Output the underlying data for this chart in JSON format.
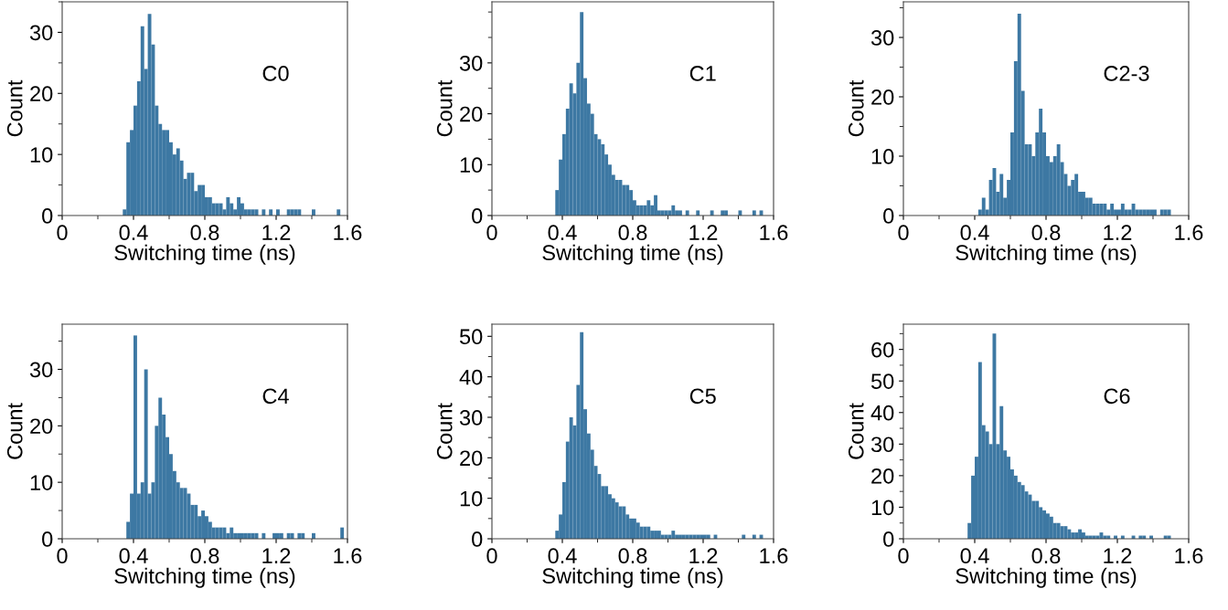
{
  "chart_data": [
    {
      "type": "histogram",
      "color": "#3d78a3",
      "xlabel": "Switching time (ns)",
      "ylabel": "Count",
      "annotations": [
        "C0"
      ],
      "xlim": [
        0,
        1.6
      ],
      "xticks": [
        0,
        0.4,
        0.8,
        1.2,
        1.6
      ],
      "ylim": [
        0,
        35
      ],
      "yticks": [
        0,
        10,
        20,
        30
      ],
      "grid": false,
      "bins": [
        0.34,
        0.36,
        0.38,
        0.4,
        0.42,
        0.44,
        0.46,
        0.48,
        0.5,
        0.52,
        0.54,
        0.56,
        0.58,
        0.6,
        0.62,
        0.64,
        0.66,
        0.68,
        0.7,
        0.72,
        0.74,
        0.76,
        0.78,
        0.8,
        0.82,
        0.84,
        0.86,
        0.88,
        0.9,
        0.92,
        0.94,
        0.96,
        0.98,
        1.0,
        1.02,
        1.04,
        1.06,
        1.08,
        1.1,
        1.12,
        1.14,
        1.16,
        1.18,
        1.2,
        1.22,
        1.24,
        1.26,
        1.28,
        1.3,
        1.32,
        1.34,
        1.36,
        1.38,
        1.4,
        1.42,
        1.44,
        1.46,
        1.48,
        1.5,
        1.52,
        1.54,
        1.56,
        1.58
      ],
      "values": [
        1,
        12,
        14,
        18,
        22,
        31,
        24,
        33,
        28,
        18,
        15,
        14,
        14,
        12,
        10,
        11,
        9,
        6,
        7,
        7,
        4,
        5,
        5,
        3,
        3,
        2,
        2,
        2,
        1,
        3,
        2,
        1,
        3,
        2,
        1,
        1,
        1,
        1,
        0,
        1,
        0,
        1,
        0,
        1,
        0,
        0,
        1,
        1,
        1,
        1,
        0,
        0,
        0,
        1,
        0,
        0,
        0,
        0,
        0,
        0,
        1,
        0
      ]
    },
    {
      "type": "histogram",
      "color": "#3d78a3",
      "xlabel": "Switching time (ns)",
      "ylabel": "Count",
      "annotations": [
        "C1"
      ],
      "xlim": [
        0,
        1.6
      ],
      "xticks": [
        0,
        0.4,
        0.8,
        1.2,
        1.6
      ],
      "ylim": [
        0,
        42
      ],
      "yticks": [
        0,
        10,
        20,
        30
      ],
      "grid": false,
      "bins": [
        0.34,
        0.36,
        0.38,
        0.4,
        0.42,
        0.44,
        0.46,
        0.48,
        0.5,
        0.52,
        0.54,
        0.56,
        0.58,
        0.6,
        0.62,
        0.64,
        0.66,
        0.68,
        0.7,
        0.72,
        0.74,
        0.76,
        0.78,
        0.8,
        0.82,
        0.84,
        0.86,
        0.88,
        0.9,
        0.92,
        0.94,
        0.96,
        0.98,
        1.0,
        1.02,
        1.04,
        1.06,
        1.08,
        1.1,
        1.12,
        1.14,
        1.16,
        1.18,
        1.2,
        1.22,
        1.24,
        1.26,
        1.28,
        1.3,
        1.32,
        1.34,
        1.36,
        1.38,
        1.4,
        1.42,
        1.44,
        1.46,
        1.48,
        1.5,
        1.52,
        1.54,
        1.56,
        1.58
      ],
      "values": [
        0,
        5,
        11,
        16,
        21,
        26,
        24,
        30,
        40,
        27,
        22,
        20,
        16,
        15,
        14,
        12,
        10,
        8,
        7,
        7,
        6,
        6,
        5,
        3,
        2,
        2,
        2,
        3,
        2,
        4,
        1,
        1,
        1,
        1,
        2,
        1,
        1,
        0,
        1,
        0,
        0,
        1,
        0,
        0,
        0,
        1,
        0,
        0,
        1,
        1,
        0,
        0,
        0,
        1,
        0,
        0,
        0,
        1,
        0,
        1,
        0,
        0
      ]
    },
    {
      "type": "histogram",
      "color": "#3d78a3",
      "xlabel": "Switching time (ns)",
      "ylabel": "Count",
      "annotations": [
        "C2-3"
      ],
      "xlim": [
        0,
        1.6
      ],
      "xticks": [
        0,
        0.4,
        0.8,
        1.2,
        1.6
      ],
      "ylim": [
        0,
        36
      ],
      "yticks": [
        0,
        10,
        20,
        30
      ],
      "grid": false,
      "bins": [
        0.34,
        0.36,
        0.38,
        0.4,
        0.42,
        0.44,
        0.46,
        0.48,
        0.5,
        0.52,
        0.54,
        0.56,
        0.58,
        0.6,
        0.62,
        0.64,
        0.66,
        0.68,
        0.7,
        0.72,
        0.74,
        0.76,
        0.78,
        0.8,
        0.82,
        0.84,
        0.86,
        0.88,
        0.9,
        0.92,
        0.94,
        0.96,
        0.98,
        1.0,
        1.02,
        1.04,
        1.06,
        1.08,
        1.1,
        1.12,
        1.14,
        1.16,
        1.18,
        1.2,
        1.22,
        1.24,
        1.26,
        1.28,
        1.3,
        1.32,
        1.34,
        1.36,
        1.38,
        1.4,
        1.42,
        1.44,
        1.46,
        1.48,
        1.5,
        1.52,
        1.54,
        1.56,
        1.58
      ],
      "values": [
        0,
        0,
        0,
        0,
        1,
        3,
        1,
        6,
        8,
        4,
        7,
        3,
        6,
        14,
        26,
        34,
        21,
        12,
        12,
        10,
        14,
        18,
        14,
        10,
        9,
        10,
        12,
        9,
        7,
        5,
        6,
        7,
        4,
        4,
        3,
        3,
        2,
        2,
        2,
        2,
        1,
        2,
        1,
        1,
        2,
        1,
        1,
        2,
        1,
        1,
        1,
        1,
        1,
        1,
        0,
        1,
        1,
        1,
        0,
        0,
        0,
        0
      ]
    },
    {
      "type": "histogram",
      "color": "#3d78a3",
      "xlabel": "Switching time (ns)",
      "ylabel": "Count",
      "annotations": [
        "C4"
      ],
      "xlim": [
        0,
        1.6
      ],
      "xticks": [
        0,
        0.4,
        0.8,
        1.2,
        1.6
      ],
      "ylim": [
        0,
        38
      ],
      "yticks": [
        0,
        10,
        20,
        30
      ],
      "grid": false,
      "bins": [
        0.34,
        0.36,
        0.38,
        0.4,
        0.42,
        0.44,
        0.46,
        0.48,
        0.5,
        0.52,
        0.54,
        0.56,
        0.58,
        0.6,
        0.62,
        0.64,
        0.66,
        0.68,
        0.7,
        0.72,
        0.74,
        0.76,
        0.78,
        0.8,
        0.82,
        0.84,
        0.86,
        0.88,
        0.9,
        0.92,
        0.94,
        0.96,
        0.98,
        1.0,
        1.02,
        1.04,
        1.06,
        1.08,
        1.1,
        1.12,
        1.14,
        1.16,
        1.18,
        1.2,
        1.22,
        1.24,
        1.26,
        1.28,
        1.3,
        1.32,
        1.34,
        1.36,
        1.38,
        1.4,
        1.42,
        1.44,
        1.46,
        1.48,
        1.5,
        1.52,
        1.54,
        1.56,
        1.58
      ],
      "values": [
        0,
        3,
        8,
        36,
        8,
        10,
        30,
        8,
        10,
        20,
        25,
        22,
        18,
        15,
        12,
        10,
        9,
        9,
        8,
        6,
        6,
        4,
        5,
        4,
        3,
        2,
        2,
        2,
        2,
        1,
        2,
        1,
        1,
        1,
        1,
        1,
        1,
        1,
        0,
        1,
        0,
        0,
        1,
        1,
        1,
        0,
        1,
        1,
        0,
        1,
        1,
        0,
        0,
        1,
        0,
        0,
        0,
        0,
        0,
        0,
        0,
        2
      ]
    },
    {
      "type": "histogram",
      "color": "#3d78a3",
      "xlabel": "Switching time (ns)",
      "ylabel": "Count",
      "annotations": [
        "C5"
      ],
      "xlim": [
        0,
        1.6
      ],
      "xticks": [
        0,
        0.4,
        0.8,
        1.2,
        1.6
      ],
      "ylim": [
        0,
        53
      ],
      "yticks": [
        0,
        10,
        20,
        30,
        40,
        50
      ],
      "grid": false,
      "bins": [
        0.34,
        0.36,
        0.38,
        0.4,
        0.42,
        0.44,
        0.46,
        0.48,
        0.5,
        0.52,
        0.54,
        0.56,
        0.58,
        0.6,
        0.62,
        0.64,
        0.66,
        0.68,
        0.7,
        0.72,
        0.74,
        0.76,
        0.78,
        0.8,
        0.82,
        0.84,
        0.86,
        0.88,
        0.9,
        0.92,
        0.94,
        0.96,
        0.98,
        1.0,
        1.02,
        1.04,
        1.06,
        1.08,
        1.1,
        1.12,
        1.14,
        1.16,
        1.18,
        1.2,
        1.22,
        1.24,
        1.26,
        1.28,
        1.3,
        1.32,
        1.34,
        1.36,
        1.38,
        1.4,
        1.42,
        1.44,
        1.46,
        1.48,
        1.5,
        1.52,
        1.54,
        1.56,
        1.58
      ],
      "values": [
        0,
        2,
        6,
        14,
        24,
        30,
        28,
        38,
        51,
        32,
        26,
        22,
        18,
        16,
        13,
        13,
        11,
        10,
        9,
        8,
        8,
        6,
        5,
        5,
        4,
        3,
        3,
        3,
        2,
        2,
        2,
        1,
        1,
        1,
        2,
        1,
        1,
        1,
        1,
        1,
        1,
        1,
        1,
        1,
        1,
        0,
        1,
        0,
        0,
        0,
        0,
        0,
        0,
        0,
        1,
        0,
        0,
        1,
        0,
        1,
        0,
        0
      ]
    },
    {
      "type": "histogram",
      "color": "#3d78a3",
      "xlabel": "Switching time (ns)",
      "ylabel": "Count",
      "annotations": [
        "C6"
      ],
      "xlim": [
        0,
        1.6
      ],
      "xticks": [
        0,
        0.4,
        0.8,
        1.2,
        1.6
      ],
      "ylim": [
        0,
        68
      ],
      "yticks": [
        0,
        10,
        20,
        30,
        40,
        50,
        60
      ],
      "grid": false,
      "bins": [
        0.34,
        0.36,
        0.38,
        0.4,
        0.42,
        0.44,
        0.46,
        0.48,
        0.5,
        0.52,
        0.54,
        0.56,
        0.58,
        0.6,
        0.62,
        0.64,
        0.66,
        0.68,
        0.7,
        0.72,
        0.74,
        0.76,
        0.78,
        0.8,
        0.82,
        0.84,
        0.86,
        0.88,
        0.9,
        0.92,
        0.94,
        0.96,
        0.98,
        1.0,
        1.02,
        1.04,
        1.06,
        1.08,
        1.1,
        1.12,
        1.14,
        1.16,
        1.18,
        1.2,
        1.22,
        1.24,
        1.26,
        1.28,
        1.3,
        1.32,
        1.34,
        1.36,
        1.38,
        1.4,
        1.42,
        1.44,
        1.46,
        1.48,
        1.5,
        1.52,
        1.54,
        1.56,
        1.58
      ],
      "values": [
        0,
        5,
        20,
        26,
        56,
        36,
        34,
        30,
        65,
        30,
        42,
        28,
        26,
        22,
        20,
        18,
        17,
        15,
        14,
        12,
        12,
        10,
        9,
        8,
        7,
        5,
        5,
        4,
        4,
        3,
        2,
        2,
        3,
        2,
        1,
        1,
        1,
        1,
        2,
        1,
        1,
        0,
        1,
        0,
        1,
        0,
        0,
        1,
        0,
        1,
        1,
        0,
        1,
        0,
        0,
        0,
        1,
        1,
        0,
        0,
        0,
        0
      ]
    }
  ]
}
